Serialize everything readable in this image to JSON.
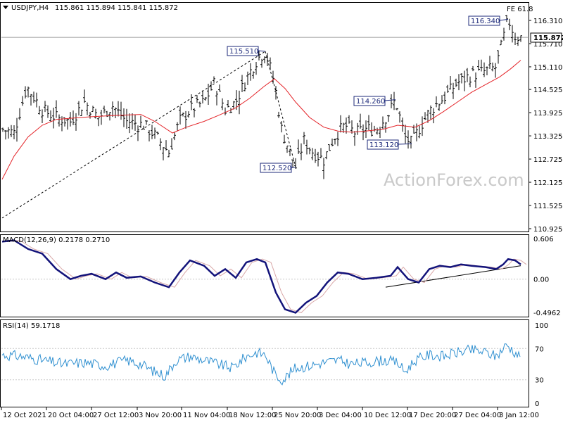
{
  "header": {
    "symbol": "USDJPY,H4",
    "ohlc": "115.861 115.894 115.841 115.872"
  },
  "fib_label": "FE 61.8",
  "watermark": "ActionForex.com",
  "price_panel": {
    "y_ticks": [
      "116.310",
      "115.710",
      "115.110",
      "114.525",
      "113.925",
      "113.325",
      "112.725",
      "112.125",
      "111.525",
      "110.925"
    ],
    "current_price": "115.872",
    "annotations": [
      {
        "text": "115.510",
        "value": 115.51
      },
      {
        "text": "112.520",
        "value": 112.52
      },
      {
        "text": "114.260",
        "value": 114.26
      },
      {
        "text": "113.120",
        "value": 113.12
      },
      {
        "text": "116.340",
        "value": 116.34
      }
    ]
  },
  "macd_panel": {
    "title": "MACD(12,26,9) 0.2178 0.2710",
    "y_ticks": [
      "0.606",
      "0.00",
      "-0.4962"
    ]
  },
  "rsi_panel": {
    "title": "RSI(14) 59.1718",
    "y_ticks": [
      "100",
      "70",
      "30",
      "0"
    ]
  },
  "x_axis": {
    "labels": [
      "12 Oct 2021",
      "20 Oct 04:00",
      "27 Oct 12:00",
      "3 Nov 20:00",
      "11 Nov 04:00",
      "18 Nov 12:00",
      "25 Nov 20:00",
      "3 Dec 04:00",
      "10 Dec 12:00",
      "17 Dec 20:00",
      "27 Dec 04:00",
      "3 Jan 12:00"
    ]
  },
  "colors": {
    "price_bars": "#000000",
    "moving_average": "#e4252a",
    "macd_line": "#13137a",
    "signal_line": "#d9a8a8",
    "rsi_line": "#2e8fd0",
    "label_text": "#1d2a7a"
  },
  "chart_data": {
    "type": "line",
    "instrument": "USDJPY",
    "timeframe": "H4",
    "price_keypoints": [
      {
        "x": "12 Oct 2021",
        "close": 113.5
      },
      {
        "x": "15 Oct",
        "close": 114.3
      },
      {
        "x": "20 Oct 04:00",
        "close": 113.9
      },
      {
        "x": "27 Oct 12:00",
        "close": 113.9
      },
      {
        "x": "3 Nov 20:00",
        "close": 112.9
      },
      {
        "x": "11 Nov 04:00",
        "close": 114.0
      },
      {
        "x": "18 Nov 12:00",
        "close": 114.3
      },
      {
        "x": "24 Nov",
        "close": 115.51
      },
      {
        "x": "30 Nov",
        "close": 112.52
      },
      {
        "x": "3 Dec 04:00",
        "close": 113.0
      },
      {
        "x": "10 Dec 12:00",
        "close": 113.5
      },
      {
        "x": "15 Dec",
        "close": 114.26
      },
      {
        "x": "17 Dec 20:00",
        "close": 113.12
      },
      {
        "x": "27 Dec 04:00",
        "close": 114.9
      },
      {
        "x": "3 Jan 12:00",
        "close": 115.5
      },
      {
        "x": "4 Jan",
        "close": 116.34
      },
      {
        "x": "5 Jan",
        "close": 115.872
      }
    ],
    "macd_keypoints": [
      0.55,
      0.48,
      0.2,
      -0.05,
      0.05,
      0.0,
      -0.05,
      -0.05,
      0.0,
      -0.25,
      0.2,
      0.0,
      0.28,
      -0.05,
      -0.45,
      -0.3,
      0.1,
      0.05,
      0.1,
      0.0,
      0.1,
      0.15,
      0.2,
      0.1,
      0.25,
      0.35,
      0.22
    ],
    "rsi_keypoints": [
      60,
      65,
      50,
      58,
      48,
      56,
      35,
      60,
      52,
      48,
      65,
      42,
      62,
      30,
      50,
      40,
      58,
      55,
      60,
      62,
      50,
      60,
      70,
      72,
      68,
      75,
      59
    ],
    "macd_trendline": {
      "from": {
        "x": "15 Dec",
        "y": -0.12
      },
      "to": {
        "x": "5 Jan",
        "y": 0.18
      }
    },
    "fib_projection_trendline": {
      "from": {
        "x": "12 Oct 2021",
        "y": 111.2
      },
      "to": {
        "x": "24 Nov",
        "y": 115.51
      }
    }
  }
}
